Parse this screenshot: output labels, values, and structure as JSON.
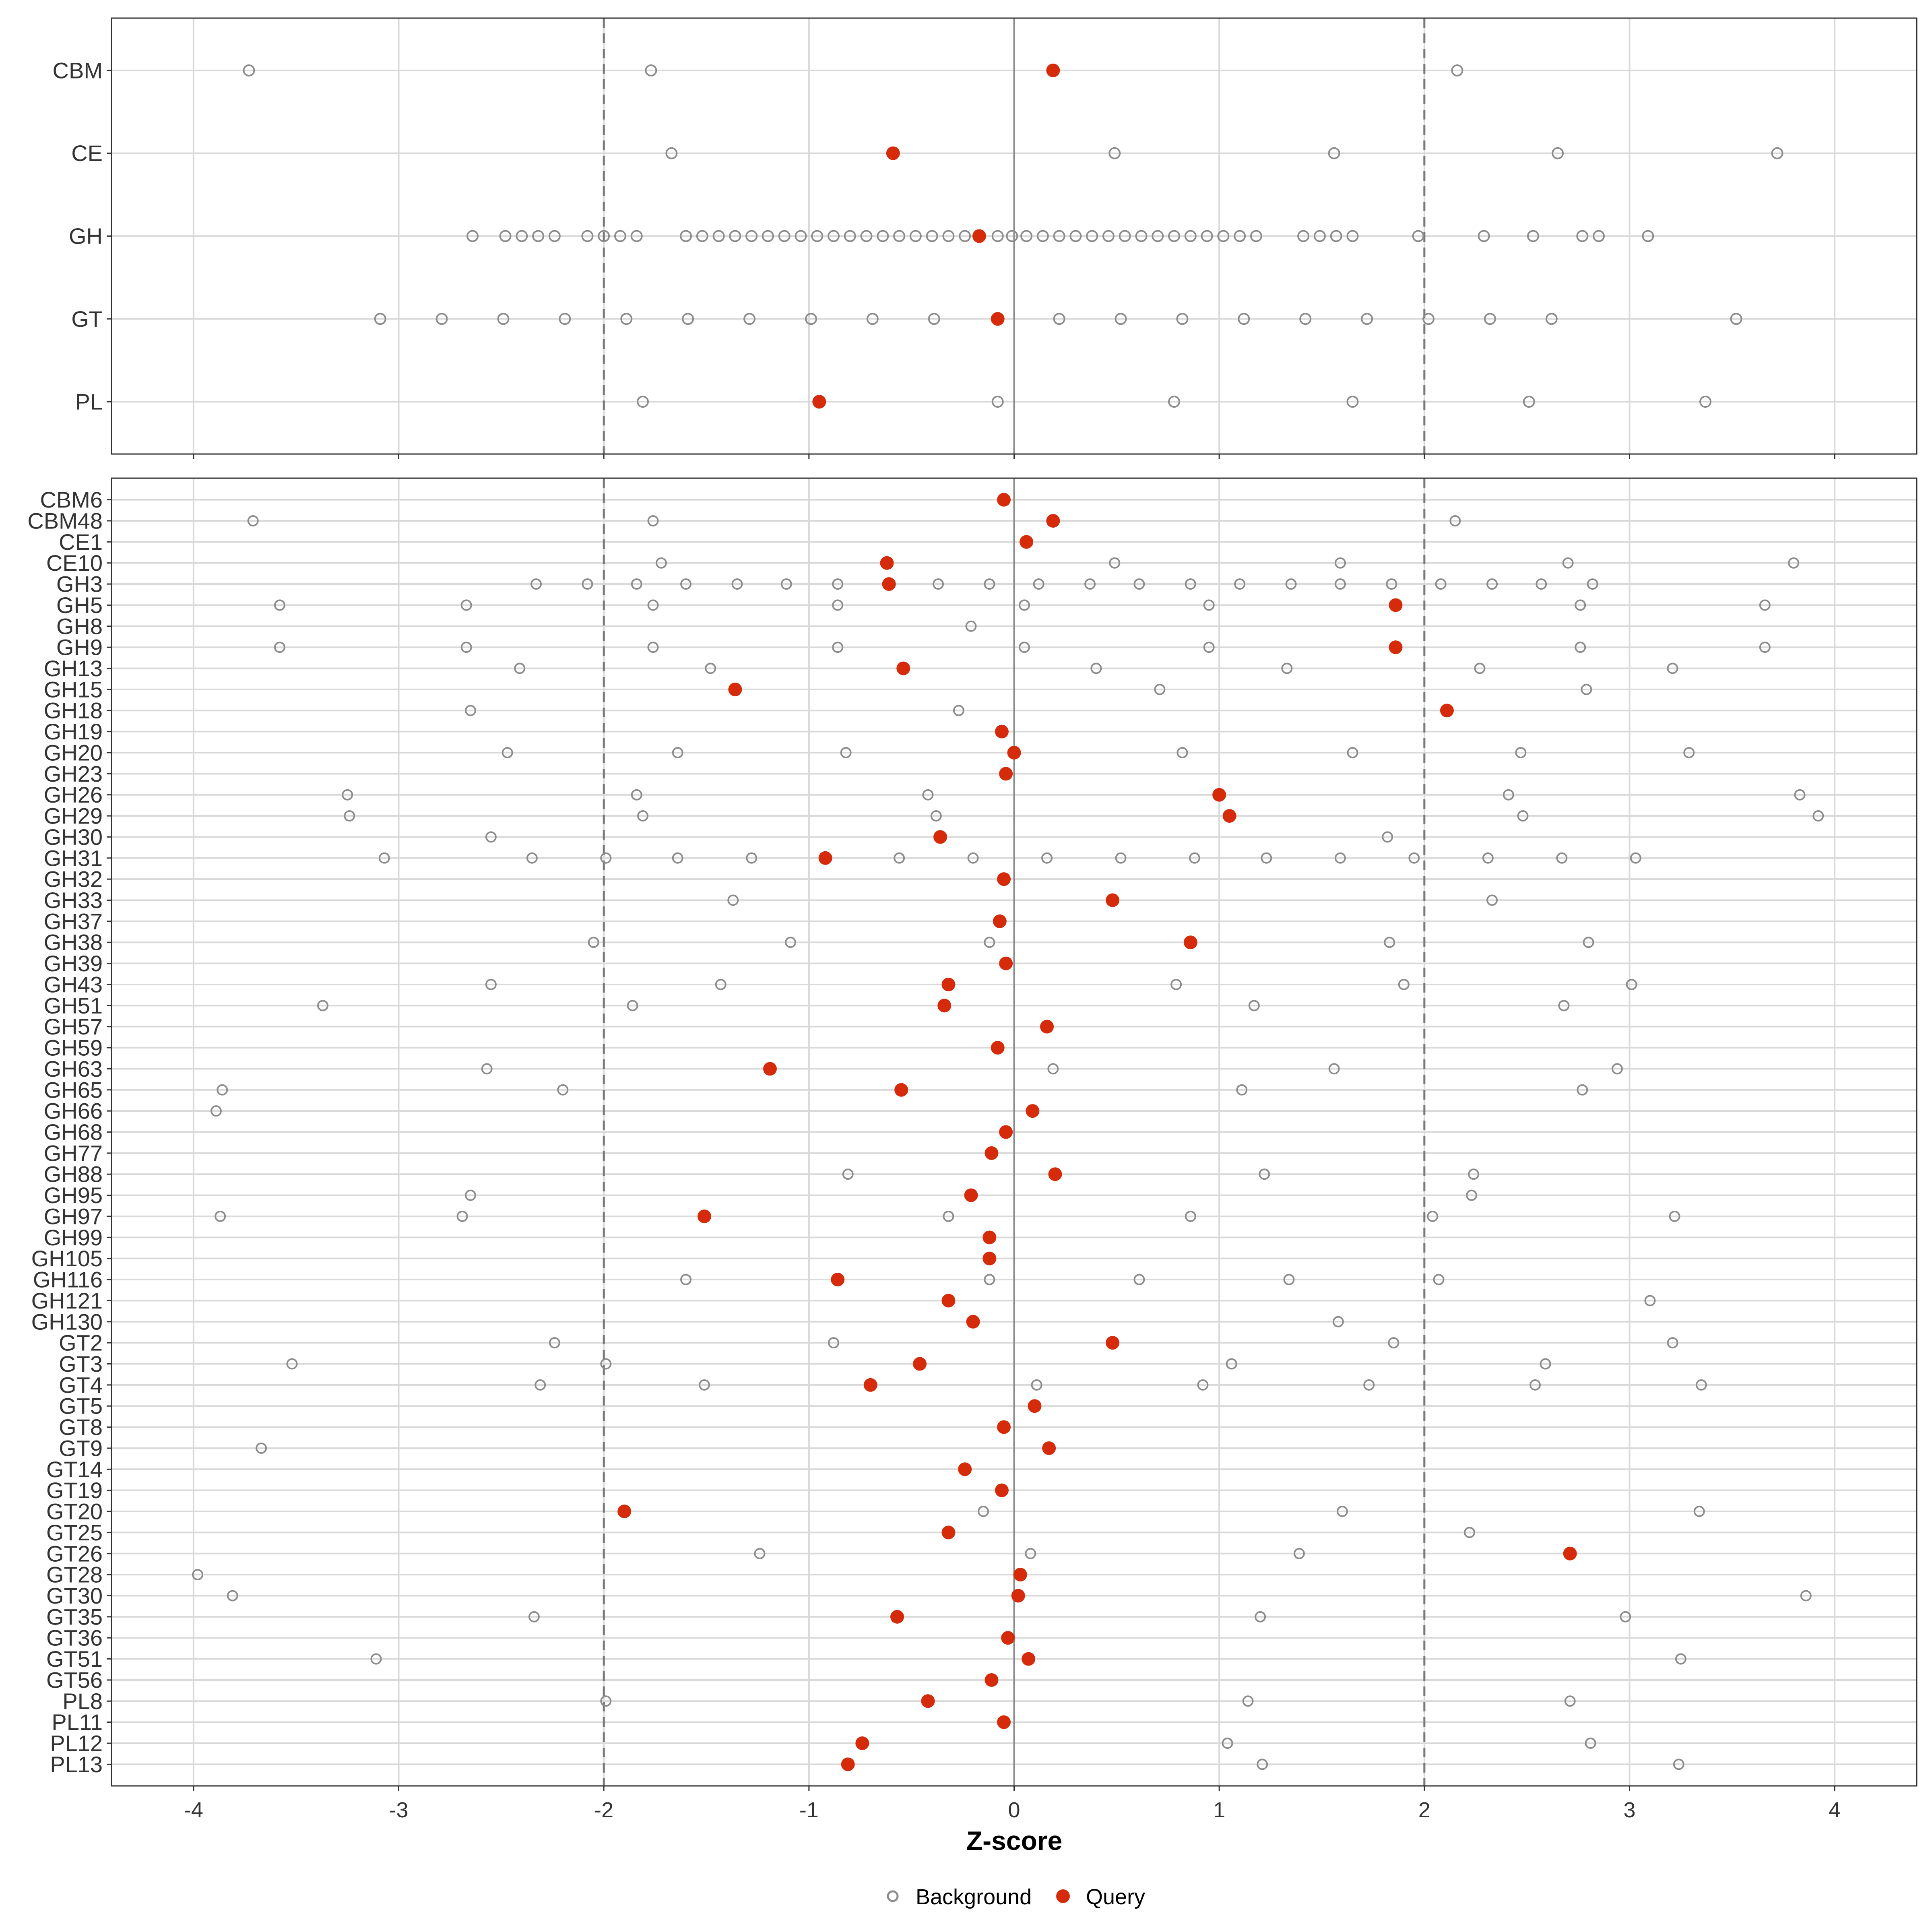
{
  "chart_data": [
    {
      "type": "scatter",
      "panel": "family",
      "xlabel": "",
      "ylabel": "",
      "xlim": [
        -4.4,
        4.4
      ],
      "x_ticks": [
        -4,
        -3,
        -2,
        -1,
        0,
        1,
        2,
        3,
        4
      ],
      "x_tick_labels": [
        "",
        "",
        "",
        "",
        "",
        "",
        "",
        "",
        ""
      ],
      "reference_lines": {
        "zero": 0,
        "dashed": [
          -2,
          2
        ]
      },
      "categories": [
        "CBM",
        "CE",
        "GH",
        "GT",
        "PL"
      ],
      "background": {
        "CBM": [
          -3.73,
          -1.77,
          2.16
        ],
        "CE": [
          -1.67,
          0.49,
          1.56,
          2.65,
          3.72
        ],
        "GH": [
          -2.64,
          -2.48,
          -2.4,
          -2.32,
          -2.24,
          -2.08,
          -2.0,
          -1.92,
          -1.84,
          -1.6,
          -1.52,
          -1.44,
          -1.36,
          -1.28,
          -1.2,
          -1.12,
          -1.04,
          -0.96,
          -0.88,
          -0.8,
          -0.72,
          -0.64,
          -0.56,
          -0.48,
          -0.4,
          -0.32,
          -0.24,
          -0.08,
          -0.01,
          0.06,
          0.14,
          0.22,
          0.3,
          0.38,
          0.46,
          0.54,
          0.62,
          0.7,
          0.78,
          0.86,
          0.94,
          1.02,
          1.1,
          1.18,
          1.41,
          1.49,
          1.57,
          1.65,
          1.97,
          2.29,
          2.53,
          2.77,
          2.85,
          3.09
        ],
        "GT": [
          -3.09,
          -2.79,
          -2.49,
          -2.19,
          -1.89,
          -1.59,
          -1.29,
          -0.99,
          -0.69,
          -0.39,
          0.22,
          0.52,
          0.82,
          1.12,
          1.42,
          1.72,
          2.02,
          2.32,
          2.62,
          3.52
        ],
        "PL": [
          -1.81,
          -0.08,
          0.78,
          1.65,
          2.51,
          3.37
        ]
      },
      "query": {
        "CBM": 0.19,
        "CE": -0.59,
        "GH": -0.17,
        "GT": -0.08,
        "PL": -0.95
      }
    },
    {
      "type": "scatter",
      "panel": "subfamily",
      "xlabel": "Z-score",
      "ylabel": "",
      "xlim": [
        -4.4,
        4.4
      ],
      "x_ticks": [
        -4,
        -3,
        -2,
        -1,
        0,
        1,
        2,
        3,
        4
      ],
      "x_tick_labels": [
        "-4",
        "-3",
        "-2",
        "-1",
        "0",
        "1",
        "2",
        "3",
        "4"
      ],
      "reference_lines": {
        "zero": 0,
        "dashed": [
          -2,
          2
        ]
      },
      "categories": [
        "CBM6",
        "CBM48",
        "CE1",
        "CE10",
        "GH3",
        "GH5",
        "GH8",
        "GH9",
        "GH13",
        "GH15",
        "GH18",
        "GH19",
        "GH20",
        "GH23",
        "GH26",
        "GH29",
        "GH30",
        "GH31",
        "GH32",
        "GH33",
        "GH37",
        "GH38",
        "GH39",
        "GH43",
        "GH51",
        "GH57",
        "GH59",
        "GH63",
        "GH65",
        "GH66",
        "GH68",
        "GH77",
        "GH88",
        "GH95",
        "GH97",
        "GH99",
        "GH105",
        "GH116",
        "GH121",
        "GH130",
        "GT2",
        "GT3",
        "GT4",
        "GT5",
        "GT8",
        "GT9",
        "GT14",
        "GT19",
        "GT20",
        "GT25",
        "GT26",
        "GT28",
        "GT30",
        "GT35",
        "GT36",
        "GT51",
        "GT56",
        "PL8",
        "PL11",
        "PL12",
        "PL13"
      ],
      "background": {
        "CBM6": [],
        "CBM48": [
          -3.71,
          -1.76,
          2.15
        ],
        "CE1": [],
        "CE10": [
          -1.72,
          0.49,
          1.59,
          2.7,
          3.8
        ],
        "GH3": [
          -2.33,
          -2.08,
          -1.84,
          -1.6,
          -1.35,
          -1.11,
          -0.86,
          -0.37,
          -0.12,
          0.12,
          0.37,
          0.61,
          0.86,
          1.1,
          1.35,
          1.59,
          1.84,
          2.08,
          2.33,
          2.57,
          2.82
        ],
        "GH5": [
          -3.58,
          -2.67,
          -1.76,
          -0.86,
          0.05,
          0.95,
          2.76,
          3.66
        ],
        "GH8": [
          -0.21
        ],
        "GH9": [
          -3.58,
          -2.67,
          -1.76,
          -0.86,
          0.05,
          0.95,
          2.76,
          3.66
        ],
        "GH13": [
          -2.41,
          -1.48,
          0.4,
          1.33,
          2.27,
          3.21
        ],
        "GH15": [
          0.71,
          2.79
        ],
        "GH18": [
          -2.65,
          -0.27
        ],
        "GH19": [],
        "GH20": [
          -2.47,
          -1.64,
          -0.82,
          0.82,
          1.65,
          2.47,
          3.29
        ],
        "GH23": [],
        "GH26": [
          -3.25,
          -1.84,
          -0.42,
          2.41,
          3.83
        ],
        "GH29": [
          -3.24,
          -1.81,
          -0.38,
          2.48,
          3.92
        ],
        "GH30": [
          -2.55,
          1.82
        ],
        "GH31": [
          -3.07,
          -2.35,
          -1.99,
          -1.64,
          -1.28,
          -0.56,
          -0.2,
          0.16,
          0.52,
          0.88,
          1.23,
          1.59,
          1.95,
          2.31,
          2.67,
          3.03
        ],
        "GH32": [],
        "GH33": [
          -1.37,
          2.33
        ],
        "GH37": [],
        "GH38": [
          -2.05,
          -1.09,
          -0.12,
          1.83,
          2.8
        ],
        "GH39": [],
        "GH43": [
          -2.55,
          -1.43,
          0.79,
          1.9,
          3.01
        ],
        "GH51": [
          -3.37,
          -1.86,
          1.17,
          2.68
        ],
        "GH57": [],
        "GH59": [],
        "GH63": [
          -2.57,
          0.19,
          1.56,
          2.94
        ],
        "GH65": [
          -3.86,
          -2.2,
          1.11,
          2.77
        ],
        "GH66": [
          -3.89
        ],
        "GH68": [],
        "GH77": [],
        "GH88": [
          -0.81,
          1.22,
          2.24
        ],
        "GH95": [
          -2.65,
          2.23
        ],
        "GH97": [
          -3.87,
          -2.69,
          -0.32,
          0.86,
          2.04,
          3.22
        ],
        "GH99": [],
        "GH105": [],
        "GH116": [
          -1.6,
          -0.12,
          0.61,
          1.34,
          2.07
        ],
        "GH121": [
          3.1
        ],
        "GH130": [
          1.58
        ],
        "GT2": [
          -2.24,
          -0.88,
          1.85,
          3.21
        ],
        "GT3": [
          -3.52,
          -1.99,
          1.06,
          2.59
        ],
        "GT4": [
          -2.31,
          -1.51,
          0.11,
          0.92,
          1.73,
          2.54,
          3.35
        ],
        "GT5": [],
        "GT8": [],
        "GT9": [
          -3.67
        ],
        "GT14": [],
        "GT19": [],
        "GT20": [
          -0.15,
          1.6,
          3.34
        ],
        "GT25": [
          2.22
        ],
        "GT26": [
          -1.24,
          0.08,
          1.39
        ],
        "GT28": [
          -3.98
        ],
        "GT30": [
          -3.81,
          3.86
        ],
        "GT35": [
          -2.34,
          1.2,
          2.98
        ],
        "GT36": [],
        "GT51": [
          -3.11,
          3.25
        ],
        "GT56": [],
        "PL8": [
          -1.99,
          1.14,
          2.71
        ],
        "PL11": [],
        "PL12": [
          1.04,
          2.81
        ],
        "PL13": [
          1.21,
          3.24
        ]
      },
      "query": {
        "CBM6": -0.05,
        "CBM48": 0.19,
        "CE1": 0.06,
        "CE10": -0.62,
        "GH3": -0.61,
        "GH5": 1.86,
        "GH8": null,
        "GH9": 1.86,
        "GH13": -0.54,
        "GH15": -1.36,
        "GH18": 2.11,
        "GH19": -0.06,
        "GH20": 0.0,
        "GH23": -0.04,
        "GH26": 1.0,
        "GH29": 1.05,
        "GH30": -0.36,
        "GH31": -0.92,
        "GH32": -0.05,
        "GH33": 0.48,
        "GH37": -0.07,
        "GH38": 0.86,
        "GH39": -0.04,
        "GH43": -0.32,
        "GH51": -0.34,
        "GH57": 0.16,
        "GH59": -0.08,
        "GH63": -1.19,
        "GH65": -0.55,
        "GH66": 0.09,
        "GH68": -0.04,
        "GH77": -0.11,
        "GH88": 0.2,
        "GH95": -0.21,
        "GH97": -1.51,
        "GH99": -0.12,
        "GH105": -0.12,
        "GH116": -0.86,
        "GH121": -0.32,
        "GH130": -0.2,
        "GT2": 0.48,
        "GT3": -0.46,
        "GT4": -0.7,
        "GT5": 0.1,
        "GT8": -0.05,
        "GT9": 0.17,
        "GT14": -0.24,
        "GT19": -0.06,
        "GT20": -1.9,
        "GT25": -0.32,
        "GT26": 2.71,
        "GT28": 0.03,
        "GT30": 0.02,
        "GT35": -0.57,
        "GT36": -0.03,
        "GT51": 0.07,
        "GT56": -0.11,
        "PL8": -0.42,
        "PL11": -0.05,
        "PL12": -0.74,
        "PL13": -0.81
      }
    }
  ],
  "legend": {
    "position": "bottom",
    "items": [
      {
        "label": "Background",
        "marker": "open-circle",
        "color": "#8c8c8c"
      },
      {
        "label": "Query",
        "marker": "filled-circle",
        "color": "#d62b0a"
      }
    ]
  },
  "colors": {
    "background_points": "#8c8c8c",
    "query_points": "#d62b0a",
    "grid": "#d9d9d9",
    "zero_line": "#8c8c8c",
    "dashed_lines": "#777777"
  }
}
